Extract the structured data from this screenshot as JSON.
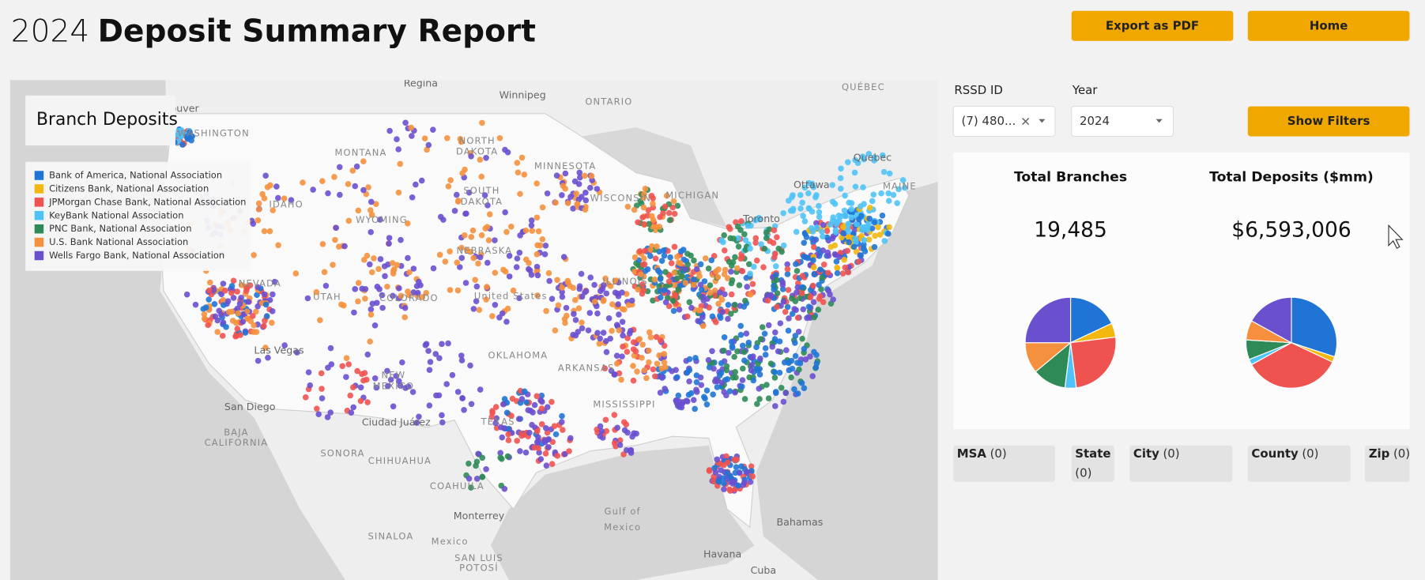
{
  "header": {
    "title_prefix": "2024",
    "title": "Deposit Summary Report",
    "buttons": [
      "Export as PDF",
      "Home"
    ]
  },
  "map": {
    "title": "Branch Deposits",
    "legend": [
      {
        "name": "Bank of America, National Association",
        "color": "#1f74d6"
      },
      {
        "name": "Citizens Bank, National Association",
        "color": "#f2b80f"
      },
      {
        "name": "JPMorgan Chase Bank, National Association",
        "color": "#ef5350"
      },
      {
        "name": "KeyBank National Association",
        "color": "#4fc3f7"
      },
      {
        "name": "PNC Bank, National Association",
        "color": "#2e8b57"
      },
      {
        "name": "U.S. Bank National Association",
        "color": "#f5913e"
      },
      {
        "name": "Wells Fargo Bank, National Association",
        "color": "#6a4fcf"
      }
    ],
    "labels": [
      "Regina",
      "Winnipeg",
      "ONTARIO",
      "QUÉBEC",
      "Vancouver",
      "WASHINGTON",
      "MONTANA",
      "NORTH",
      "DAKOTA",
      "MINNESOTA",
      "SOUTH",
      "DAKOTA",
      "WISCONSIN",
      "MICHIGAN",
      "Ottawa",
      "Quebec",
      "MAINE",
      "Toronto",
      "IDAHO",
      "WYOMING",
      "NEBRASKA",
      "United States",
      "NEVADA",
      "UTAH",
      "COLORADO",
      "ILLINOIS",
      "Las Vegas",
      "OKLAHOMA",
      "ARKANSAS",
      "NEW",
      "MEXICO",
      "TEXAS",
      "Ciudad Juárez",
      "MISSISSIPPI",
      "San Diego",
      "BAJA",
      "CALIFORNIA",
      "SONORA",
      "CHIHUAHUA",
      "COAHUILA",
      "Monterrey",
      "Gulf of",
      "Mexico",
      "Mexico",
      "Bahamas",
      "Havana",
      "Cuba",
      "SINALOA",
      "SAN LUIS",
      "POTOSÍ"
    ]
  },
  "filters": {
    "rssd_label": "RSSD ID",
    "rssd_value": "(7) 480...",
    "year_label": "Year",
    "year_value": "2024",
    "show_filters": "Show Filters"
  },
  "kpis": [
    {
      "title": "Total Branches",
      "value": "19,485",
      "shares": [
        18,
        5,
        25,
        4,
        12,
        11,
        25
      ]
    },
    {
      "title": "Total Deposits ($mm)",
      "value": "$6,593,006",
      "shares": [
        30,
        2,
        35,
        2,
        7,
        7,
        17
      ]
    }
  ],
  "chips": [
    {
      "name": "MSA",
      "count": "(0)"
    },
    {
      "name": "State",
      "count": "(0)"
    },
    {
      "name": "City",
      "count": "(0)"
    },
    {
      "name": "County",
      "count": "(0)"
    },
    {
      "name": "Zip",
      "count": "(0)"
    }
  ]
}
